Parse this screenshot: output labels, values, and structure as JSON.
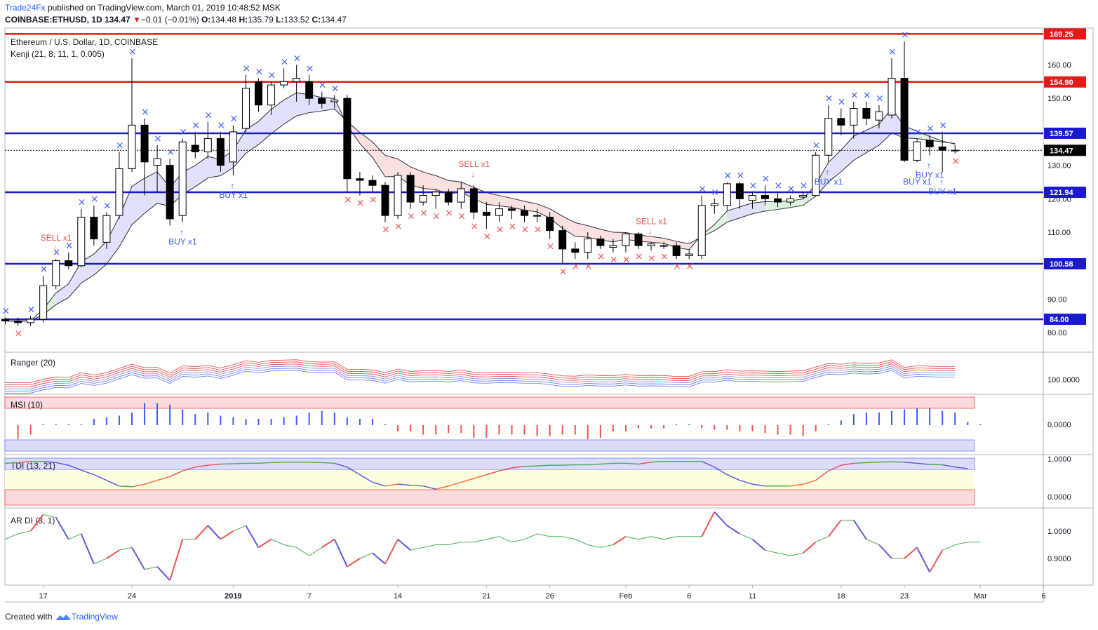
{
  "header": {
    "publisher": "Trade24Fx",
    "published_text": "published on TradingView.com, March 01, 2019 10:48:52 MSK",
    "symbol": "COINBASE:ETHUSD, 1D",
    "last": "134.47",
    "change": "−0.01 (−0.01%)",
    "open_label": "O:",
    "open": "134.48",
    "high_label": "H:",
    "high": "135.79",
    "low_label": "L:",
    "low": "133.52",
    "close_label": "C:",
    "close": "134.47"
  },
  "footer": {
    "created_with": "Created with",
    "brand": "TradingView"
  },
  "colors": {
    "up": "#ffffff",
    "down": "#000000",
    "level": "#1a1acc",
    "resistance": "#e31a1a",
    "buy": "#3d5afe",
    "sell": "#ef5350",
    "green": "#4caf50"
  },
  "chart_data": [
    {
      "type": "candlestick",
      "title": "Ethereum / U.S. Dollar, 1D, COINBASE",
      "indicator_label": "Kenji (21, 8, 11, 1, 0.005)",
      "ylim": [
        75,
        171
      ],
      "y_ticks": [
        "80.00",
        "90.00",
        "100.00",
        "110.00",
        "120.00",
        "130.00",
        "140.00",
        "150.00",
        "160.00"
      ],
      "y_tick_values": [
        80,
        90,
        100,
        110,
        120,
        130,
        140,
        150,
        160
      ],
      "x_ticks": [
        {
          "label": "17",
          "date": "2018-12-17"
        },
        {
          "label": "24",
          "date": "2018-12-24"
        },
        {
          "label": "2019",
          "date": "2019-01-01"
        },
        {
          "label": "7",
          "date": "2019-01-07"
        },
        {
          "label": "14",
          "date": "2019-01-14"
        },
        {
          "label": "21",
          "date": "2019-01-21"
        },
        {
          "label": "26",
          "date": "2019-01-26"
        },
        {
          "label": "Feb",
          "date": "2019-02-01"
        },
        {
          "label": "6",
          "date": "2019-02-06"
        },
        {
          "label": "11",
          "date": "2019-02-11"
        },
        {
          "label": "18",
          "date": "2019-02-18"
        },
        {
          "label": "23",
          "date": "2019-02-23"
        },
        {
          "label": "Mar",
          "date": "2019-03-01"
        },
        {
          "label": "6",
          "date": "2019-03-06"
        }
      ],
      "first_date": "2018-12-14",
      "horizontal_levels": [
        {
          "value": 169.25,
          "label": "169.25",
          "color": "#e31a1a"
        },
        {
          "value": 154.9,
          "label": "154.90",
          "color": "#e31a1a"
        },
        {
          "value": 139.57,
          "label": "139.57",
          "color": "#1a1acc"
        },
        {
          "value": 121.94,
          "label": "121.94",
          "color": "#1a1acc"
        },
        {
          "value": 100.58,
          "label": "100.58",
          "color": "#1a1acc"
        },
        {
          "value": 84.0,
          "label": "84.00",
          "color": "#1a1acc"
        }
      ],
      "last_price": {
        "value": 134.47,
        "label": "134.47"
      },
      "ohlc": [
        [
          84.0,
          84.5,
          82.5,
          83.5
        ],
        [
          83.5,
          84.5,
          82.0,
          83.0
        ],
        [
          83.0,
          85.0,
          82.0,
          84.0
        ],
        [
          84.0,
          97.0,
          83.0,
          94.0
        ],
        [
          94.0,
          102.0,
          93.0,
          101.5
        ],
        [
          101.5,
          104.0,
          99.0,
          100.0
        ],
        [
          100.0,
          117.0,
          99.5,
          114.5
        ],
        [
          114.5,
          118.0,
          106.0,
          108.0
        ],
        [
          107.0,
          116.0,
          105.0,
          115.0
        ],
        [
          115.0,
          134.0,
          114.0,
          129.0
        ],
        [
          129.0,
          162.0,
          128.0,
          142.0
        ],
        [
          142.0,
          144.0,
          121.0,
          131.0
        ],
        [
          130.0,
          136.0,
          122.0,
          132.0
        ],
        [
          130.0,
          132.0,
          112.0,
          114.0
        ],
        [
          115.0,
          138.0,
          113.0,
          137.0
        ],
        [
          136.0,
          140.0,
          132.0,
          134.0
        ],
        [
          134.0,
          143.0,
          132.0,
          138.0
        ],
        [
          138.0,
          140.0,
          128.0,
          130.0
        ],
        [
          131.0,
          142.0,
          127.0,
          140.0
        ],
        [
          141.0,
          157.0,
          140.0,
          153.0
        ],
        [
          155.0,
          156.0,
          146.0,
          148.0
        ],
        [
          148.0,
          155.0,
          145.0,
          154.0
        ],
        [
          154.0,
          159.0,
          153.0,
          155.0
        ],
        [
          155.0,
          160.0,
          149.0,
          156.0
        ],
        [
          155.0,
          157.0,
          148.0,
          150.0
        ],
        [
          150.0,
          152.0,
          147.0,
          148.5
        ],
        [
          149.0,
          151.0,
          147.0,
          149.5
        ],
        [
          150.0,
          151.0,
          122.0,
          126.0
        ],
        [
          126.0,
          128.0,
          121.0,
          125.5
        ],
        [
          125.5,
          127.0,
          122.0,
          124.0
        ],
        [
          124.0,
          125.0,
          113.0,
          115.0
        ],
        [
          115.0,
          128.0,
          114.0,
          127.0
        ],
        [
          127.0,
          128.0,
          117.0,
          119.0
        ],
        [
          119.0,
          124.0,
          118.0,
          121.0
        ],
        [
          121.0,
          123.0,
          117.0,
          122.0
        ],
        [
          122.0,
          123.0,
          118.0,
          119.0
        ],
        [
          119.0,
          125.0,
          117.0,
          123.0
        ],
        [
          123.0,
          124.0,
          114.0,
          116.0
        ],
        [
          116.0,
          119.0,
          111.0,
          115.0
        ],
        [
          115.0,
          119.0,
          113.0,
          117.0
        ],
        [
          117.0,
          118.0,
          114.0,
          116.5
        ],
        [
          116.5,
          118.0,
          113.0,
          115.0
        ],
        [
          115.0,
          117.0,
          113.0,
          115.0
        ],
        [
          114.5,
          116.0,
          108.0,
          110.5
        ],
        [
          110.5,
          112.0,
          100.5,
          105.0
        ],
        [
          105.0,
          107.0,
          102.0,
          104.0
        ],
        [
          104.0,
          110.0,
          102.0,
          108.0
        ],
        [
          108.0,
          109.0,
          105.0,
          106.0
        ],
        [
          105.5,
          108.0,
          104.0,
          106.0
        ],
        [
          106.0,
          110.0,
          104.0,
          109.5
        ],
        [
          109.5,
          110.0,
          105.0,
          106.0
        ],
        [
          106.0,
          107.0,
          104.5,
          106.5
        ],
        [
          106.0,
          107.0,
          105.0,
          106.0
        ],
        [
          106.0,
          107.0,
          102.0,
          103.0
        ],
        [
          103.0,
          105.0,
          102.0,
          103.5
        ],
        [
          103.0,
          121.0,
          102.0,
          118.0
        ],
        [
          118.0,
          120.0,
          115.5,
          118.5
        ],
        [
          118.0,
          125.0,
          116.5,
          124.5
        ],
        [
          124.5,
          125.0,
          117.0,
          120.0
        ],
        [
          119.5,
          122.0,
          117.0,
          121.0
        ],
        [
          121.0,
          124.0,
          118.0,
          120.0
        ],
        [
          120.0,
          122.0,
          117.5,
          119.0
        ],
        [
          119.0,
          121.0,
          118.0,
          120.0
        ],
        [
          120.5,
          122.0,
          120.0,
          121.0
        ],
        [
          121.0,
          134.0,
          121.0,
          133.0
        ],
        [
          133.0,
          148.0,
          131.0,
          144.0
        ],
        [
          144.0,
          147.0,
          139.0,
          142.0
        ],
        [
          142.0,
          149.0,
          138.0,
          147.0
        ],
        [
          147.0,
          149.0,
          142.0,
          144.0
        ],
        [
          143.5,
          148.0,
          141.0,
          146.0
        ],
        [
          145.0,
          162.0,
          144.0,
          156.0
        ],
        [
          156.0,
          167.0,
          131.0,
          131.5
        ],
        [
          131.5,
          138.0,
          131.0,
          137.0
        ],
        [
          137.5,
          139.0,
          133.0,
          135.5
        ],
        [
          135.5,
          140.0,
          128.0,
          134.5
        ],
        [
          134.5,
          136.0,
          133.5,
          134.47
        ]
      ],
      "signals": [
        {
          "type": "sell",
          "label": "SELL x1",
          "date": "2018-12-18"
        },
        {
          "type": "buy",
          "label": "BUY x1",
          "date": "2018-12-28"
        },
        {
          "type": "buy",
          "label": "BUY x1",
          "date": "2019-01-01"
        },
        {
          "type": "sell",
          "label": "SELL x1",
          "date": "2019-01-20"
        },
        {
          "type": "sell",
          "label": "SELL x1",
          "date": "2019-02-03"
        },
        {
          "type": "buy",
          "label": "BUY x1",
          "date": "2019-02-17"
        },
        {
          "type": "buy",
          "label": "BUY x1",
          "date": "2019-02-24"
        },
        {
          "type": "buy",
          "label": "BUY x1",
          "date": "2019-02-25"
        },
        {
          "type": "buy",
          "label": "BUY x1",
          "date": "2019-02-26"
        }
      ]
    },
    {
      "type": "line",
      "title": "Ranger (20)",
      "y_ticks": [
        "100.0000"
      ]
    },
    {
      "type": "bar",
      "title": "MSI (10)",
      "y_ticks": [
        "0.0000"
      ],
      "values": [
        -0.45,
        -0.3,
        -0.05,
        -0.05,
        0.02,
        0.05,
        0.2,
        0.25,
        0.3,
        0.4,
        0.7,
        0.7,
        0.65,
        0.5,
        0.35,
        0.4,
        0.3,
        0.25,
        0.2,
        0.2,
        0.2,
        0.25,
        0.3,
        0.4,
        0.45,
        0.4,
        0.25,
        0.2,
        0.2,
        0,
        -0.2,
        -0.2,
        -0.3,
        -0.3,
        -0.25,
        -0.25,
        -0.4,
        -0.4,
        -0.3,
        -0.3,
        -0.3,
        -0.35,
        -0.35,
        -0.3,
        -0.3,
        -0.45,
        -0.4,
        -0.2,
        -0.2,
        -0.1,
        -0.1,
        -0.1,
        -0.05,
        -0.05,
        -0.1,
        -0.15,
        -0.15,
        -0.2,
        -0.2,
        -0.25,
        -0.3,
        -0.3,
        -0.35,
        -0.2,
        0.05,
        0.15,
        0.35,
        0.4,
        0.4,
        0.45,
        0.5,
        0.55,
        0.55,
        0.45,
        0.4,
        0.1,
        -0.05
      ]
    },
    {
      "type": "line",
      "title": "TDI (13, 21)",
      "y_ticks": [
        "1.0000",
        "0.0000"
      ],
      "values": [
        0.9,
        0.92,
        0.95,
        0.95,
        0.92,
        0.85,
        0.72,
        0.6,
        0.45,
        0.3,
        0.28,
        0.35,
        0.45,
        0.55,
        0.7,
        0.8,
        0.85,
        0.88,
        0.89,
        0.9,
        0.9,
        0.92,
        0.93,
        0.93,
        0.93,
        0.92,
        0.9,
        0.8,
        0.6,
        0.4,
        0.3,
        0.35,
        0.32,
        0.3,
        0.22,
        0.3,
        0.4,
        0.5,
        0.6,
        0.7,
        0.78,
        0.82,
        0.83,
        0.85,
        0.85,
        0.86,
        0.86,
        0.88,
        0.9,
        0.9,
        0.88,
        0.93,
        0.95,
        0.95,
        0.95,
        0.95,
        0.8,
        0.6,
        0.45,
        0.35,
        0.3,
        0.3,
        0.3,
        0.35,
        0.45,
        0.7,
        0.85,
        0.9,
        0.92,
        0.93,
        0.94,
        0.93,
        0.9,
        0.87,
        0.86,
        0.8,
        0.76
      ]
    },
    {
      "type": "line",
      "title": "AR DI (8, 1)",
      "y_ticks": [
        "1.0000",
        "0.9000"
      ],
      "values": [
        0.97,
        0.99,
        1.0,
        1.06,
        1.05,
        0.97,
        0.99,
        0.88,
        0.9,
        0.93,
        0.94,
        0.86,
        0.87,
        0.82,
        0.97,
        0.97,
        1.02,
        0.97,
        1.0,
        1.02,
        0.94,
        0.97,
        0.95,
        0.94,
        0.91,
        0.94,
        0.97,
        0.87,
        0.9,
        0.92,
        0.88,
        0.97,
        0.93,
        0.94,
        0.95,
        0.95,
        0.96,
        0.96,
        0.97,
        0.98,
        0.96,
        0.97,
        0.99,
        0.98,
        0.98,
        0.97,
        0.95,
        0.94,
        0.95,
        0.98,
        0.97,
        0.98,
        0.97,
        0.98,
        0.98,
        0.98,
        1.07,
        1.02,
        0.99,
        0.97,
        0.93,
        0.92,
        0.91,
        0.92,
        0.96,
        0.98,
        1.04,
        1.04,
        0.97,
        0.95,
        0.9,
        0.9,
        0.94,
        0.85,
        0.93,
        0.95,
        0.96,
        0.96
      ]
    }
  ]
}
